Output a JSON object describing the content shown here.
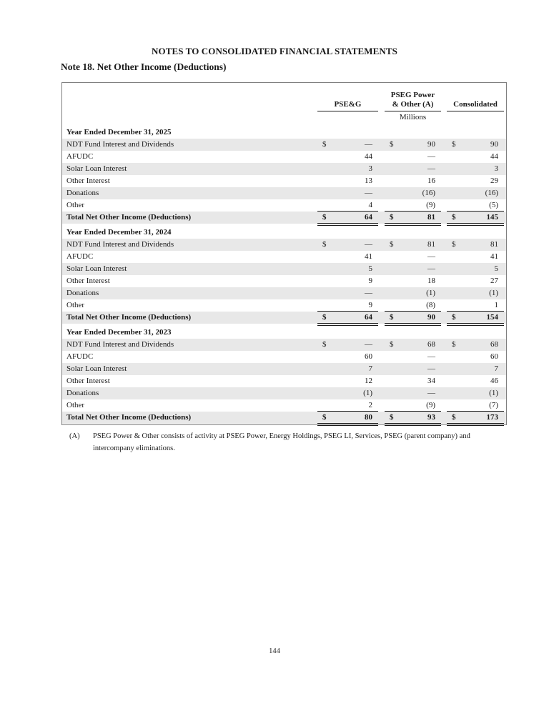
{
  "page": {
    "document_header": "NOTES TO CONSOLIDATED FINANCIAL STATEMENTS",
    "note_title": "Note 18. Net Other Income (Deductions)",
    "page_number": "144"
  },
  "table": {
    "currency_symbol": "$",
    "units_label": "Millions",
    "columns": [
      {
        "lines": [
          "PSE&G"
        ]
      },
      {
        "lines": [
          "PSEG Power",
          "& Other (A)"
        ]
      },
      {
        "lines": [
          "Consolidated"
        ]
      }
    ],
    "sections": [
      {
        "year_label": "Year Ended December 31, 2025",
        "rows": [
          {
            "label": "NDT Fund Interest and Dividends",
            "dollar": true,
            "values": [
              "—",
              "90",
              "90"
            ]
          },
          {
            "label": "AFUDC",
            "dollar": false,
            "values": [
              "44",
              "—",
              "44"
            ]
          },
          {
            "label": "Solar Loan Interest",
            "dollar": false,
            "values": [
              "3",
              "—",
              "3"
            ]
          },
          {
            "label": "Other Interest",
            "dollar": false,
            "values": [
              "13",
              "16",
              "29"
            ]
          },
          {
            "label": "Donations",
            "dollar": false,
            "values": [
              "—",
              "(16)",
              "(16)"
            ]
          },
          {
            "label": "Other",
            "dollar": false,
            "values": [
              "4",
              "(9)",
              "(5)"
            ]
          }
        ],
        "total": {
          "label": "Total Net Other Income (Deductions)",
          "dollar": true,
          "values": [
            "64",
            "81",
            "145"
          ]
        }
      },
      {
        "year_label": "Year Ended December 31, 2024",
        "rows": [
          {
            "label": "NDT Fund Interest and Dividends",
            "dollar": true,
            "values": [
              "—",
              "81",
              "81"
            ]
          },
          {
            "label": "AFUDC",
            "dollar": false,
            "values": [
              "41",
              "—",
              "41"
            ]
          },
          {
            "label": "Solar Loan Interest",
            "dollar": false,
            "values": [
              "5",
              "—",
              "5"
            ]
          },
          {
            "label": "Other Interest",
            "dollar": false,
            "values": [
              "9",
              "18",
              "27"
            ]
          },
          {
            "label": "Donations",
            "dollar": false,
            "values": [
              "—",
              "(1)",
              "(1)"
            ]
          },
          {
            "label": "Other",
            "dollar": false,
            "values": [
              "9",
              "(8)",
              "1"
            ]
          }
        ],
        "total": {
          "label": "Total Net Other Income (Deductions)",
          "dollar": true,
          "values": [
            "64",
            "90",
            "154"
          ]
        }
      },
      {
        "year_label": "Year Ended December 31, 2023",
        "rows": [
          {
            "label": "NDT Fund Interest and Dividends",
            "dollar": true,
            "values": [
              "—",
              "68",
              "68"
            ]
          },
          {
            "label": "AFUDC",
            "dollar": false,
            "values": [
              "60",
              "—",
              "60"
            ]
          },
          {
            "label": "Solar Loan Interest",
            "dollar": false,
            "values": [
              "7",
              "—",
              "7"
            ]
          },
          {
            "label": "Other Interest",
            "dollar": false,
            "values": [
              "12",
              "34",
              "46"
            ]
          },
          {
            "label": "Donations",
            "dollar": false,
            "values": [
              "(1)",
              "—",
              "(1)"
            ]
          },
          {
            "label": "Other",
            "dollar": false,
            "values": [
              "2",
              "(9)",
              "(7)"
            ]
          }
        ],
        "total": {
          "label": "Total Net Other Income (Deductions)",
          "dollar": true,
          "values": [
            "80",
            "93",
            "173"
          ]
        }
      }
    ],
    "footnote": {
      "marker": "(A)",
      "text": "PSEG Power & Other consists of activity at PSEG Power, Energy Holdings, PSEG LI, Services, PSEG (parent company) and intercompany eliminations."
    },
    "colors": {
      "row_shade": "#e8e8e8",
      "rule_line": "#1a1a1a",
      "table_border": "#7f7f7f"
    }
  }
}
